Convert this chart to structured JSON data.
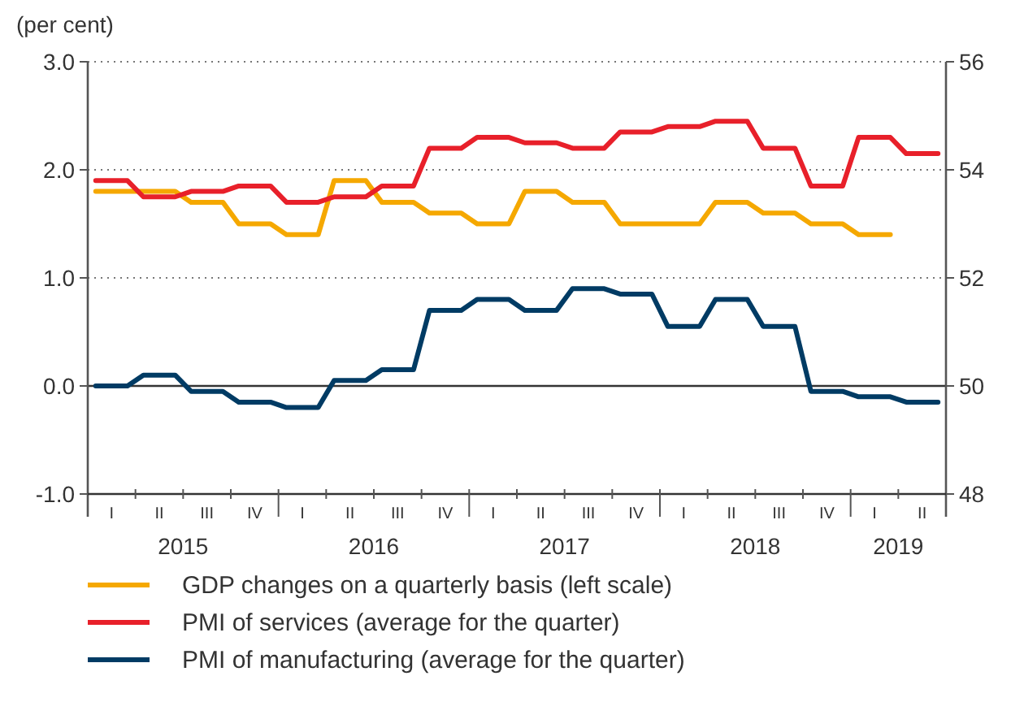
{
  "chart_data": {
    "type": "line",
    "ylabel": "(per cent)",
    "categories": [
      null,
      "I",
      null,
      null,
      "II",
      null,
      null,
      "III",
      null,
      null,
      "IV",
      null,
      null,
      "I",
      null,
      null,
      "II",
      null,
      null,
      "III",
      null,
      null,
      "IV",
      null,
      null,
      "I",
      null,
      null,
      "II",
      null,
      null,
      "III",
      null,
      null,
      "IV",
      null,
      null,
      "I",
      null,
      null,
      "II",
      null,
      null,
      "III",
      null,
      null,
      "IV",
      null,
      null,
      "I",
      null,
      null,
      "II",
      null
    ],
    "series": [
      {
        "name": "GDP changes on a quarterly basis (left scale)",
        "color": "#f5a800",
        "values": [
          1.8,
          1.8,
          1.8,
          1.8,
          1.8,
          1.8,
          1.7,
          1.7,
          1.7,
          1.5,
          1.5,
          1.5,
          1.4,
          1.4,
          1.4,
          1.9,
          1.9,
          1.9,
          1.7,
          1.7,
          1.7,
          1.6,
          1.6,
          1.6,
          1.5,
          1.5,
          1.5,
          1.8,
          1.8,
          1.8,
          1.7,
          1.7,
          1.7,
          1.5,
          1.5,
          1.5,
          1.5,
          1.5,
          1.5,
          1.7,
          1.7,
          1.7,
          1.6,
          1.6,
          1.6,
          1.5,
          1.5,
          1.5,
          1.4,
          1.4,
          1.4,
          null,
          null,
          null
        ]
      },
      {
        "name": "PMI of services (average for the quarter)",
        "color": "#e8202a",
        "axis": "y2",
        "values": [
          53.8,
          53.8,
          53.8,
          53.5,
          53.5,
          53.5,
          53.6,
          53.6,
          53.6,
          53.7,
          53.7,
          53.7,
          53.4,
          53.4,
          53.4,
          53.5,
          53.5,
          53.5,
          53.7,
          53.7,
          53.7,
          54.4,
          54.4,
          54.4,
          54.6,
          54.6,
          54.6,
          54.5,
          54.5,
          54.5,
          54.4,
          54.4,
          54.4,
          54.7,
          54.7,
          54.7,
          54.8,
          54.8,
          54.8,
          54.9,
          54.9,
          54.9,
          54.4,
          54.4,
          54.4,
          53.7,
          53.7,
          53.7,
          54.6,
          54.6,
          54.6,
          54.3,
          54.3,
          54.3
        ]
      },
      {
        "name": "PMI of manufacturing (average for the quarter)",
        "color": "#003b64",
        "axis": "y2",
        "values": [
          50.0,
          50.0,
          50.0,
          50.2,
          50.2,
          50.2,
          49.9,
          49.9,
          49.9,
          49.7,
          49.7,
          49.7,
          49.6,
          49.6,
          49.6,
          50.1,
          50.1,
          50.1,
          50.3,
          50.3,
          50.3,
          51.4,
          51.4,
          51.4,
          51.6,
          51.6,
          51.6,
          51.4,
          51.4,
          51.4,
          51.8,
          51.8,
          51.8,
          51.7,
          51.7,
          51.7,
          51.1,
          51.1,
          51.1,
          51.6,
          51.6,
          51.6,
          51.1,
          51.1,
          51.1,
          49.9,
          49.9,
          49.9,
          49.8,
          49.8,
          49.8,
          49.7,
          49.7,
          49.7
        ]
      }
    ],
    "annotations": [
      "2015",
      "2016",
      "2017",
      "2018",
      "2019"
    ],
    "ylim": [
      -1,
      3
    ],
    "yticks": [
      {
        "value": -1,
        "label": "-1.0"
      },
      {
        "value": 0,
        "label": "0.0"
      },
      {
        "value": 1,
        "label": "1.0"
      },
      {
        "value": 2,
        "label": "2.0"
      },
      {
        "value": 3,
        "label": "3.0"
      }
    ],
    "y2lim": [
      48,
      56
    ],
    "y2ticks": [
      48,
      50,
      52,
      54,
      56
    ],
    "grid": "y",
    "line_style": "solid",
    "marker": "none",
    "legend": "bottom",
    "ref_lines": [
      {
        "axis": "y",
        "value": 0,
        "color": "#333333"
      }
    ]
  }
}
